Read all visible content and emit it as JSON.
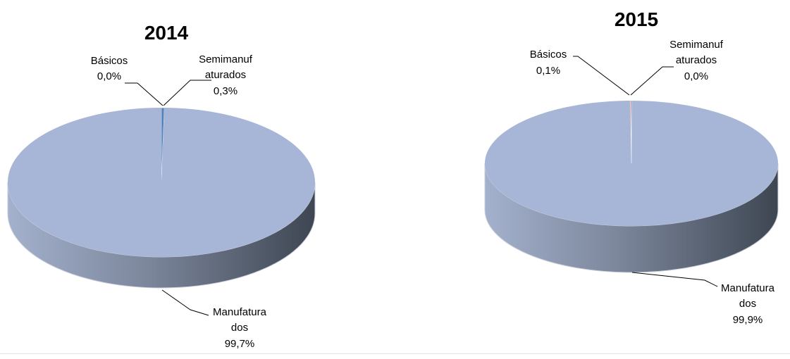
{
  "chart_data": [
    {
      "type": "pie",
      "title": "2014",
      "slices": [
        {
          "name": "Manufaturados",
          "label_lines": [
            "Manufatura",
            "dos"
          ],
          "value": 99.7,
          "value_label": "99,7%",
          "color": "#a7b6d6"
        },
        {
          "name": "Semimanufaturados",
          "label_lines": [
            "Semimanuf",
            "aturados"
          ],
          "value": 0.3,
          "value_label": "0,3%",
          "color": "#4f81bd"
        },
        {
          "name": "Básicos",
          "label_lines": [
            "Básicos"
          ],
          "value": 0.0,
          "value_label": "0,0%",
          "color": "#c0504d"
        }
      ]
    },
    {
      "type": "pie",
      "title": "2015",
      "slices": [
        {
          "name": "Manufaturados",
          "label_lines": [
            "Manufatura",
            "dos"
          ],
          "value": 99.9,
          "value_label": "99,9%",
          "color": "#a7b6d6"
        },
        {
          "name": "Semimanufaturados",
          "label_lines": [
            "Semimanuf",
            "aturados"
          ],
          "value": 0.0,
          "value_label": "0,0%",
          "color": "#4f81bd"
        },
        {
          "name": "Básicos",
          "label_lines": [
            "Básicos"
          ],
          "value": 0.1,
          "value_label": "0,1%",
          "color": "#c0504d"
        }
      ]
    }
  ],
  "colors": {
    "side_light": "#a4b1cd",
    "side_dark": "#3e4652"
  }
}
